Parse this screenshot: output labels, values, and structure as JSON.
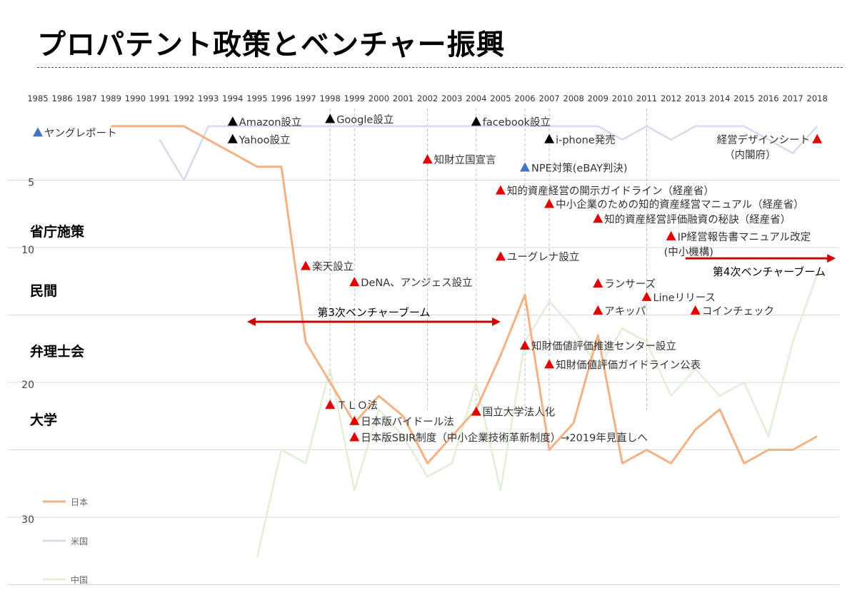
{
  "title": "プロパテント政策とベンチャー振興",
  "categories": {
    "ministry": "省庁施策",
    "private": "民間",
    "patent_attorneys": "弁理士会",
    "university": "大学"
  },
  "colors": {
    "japan": "#f4b183",
    "usa": "#d6dcec",
    "china": "#e2efd9",
    "marker_red": "#e00000",
    "marker_black": "#000000",
    "marker_blue": "#4472c4",
    "arrow": "#d00000",
    "grid": "#d9d9d9"
  },
  "chart_data": {
    "type": "line",
    "x": [
      "1985",
      "1986",
      "1987",
      "1989",
      "1990",
      "1991",
      "1992",
      "1993",
      "1994",
      "1995",
      "1996",
      "1997",
      "1998",
      "1999",
      "2000",
      "2001",
      "2002",
      "2003",
      "2004",
      "2005",
      "2006",
      "2007",
      "2008",
      "2009",
      "2010",
      "2011",
      "2012",
      "2013",
      "2014",
      "2015",
      "2016",
      "2017",
      "2018"
    ],
    "y_ticks": [
      5,
      10,
      20,
      30
    ],
    "ylim": [
      0,
      35
    ],
    "y_inverted": true,
    "grid": true,
    "legend_position": "left",
    "series": [
      {
        "name": "日本",
        "color_key": "japan",
        "values": [
          null,
          null,
          null,
          1,
          1,
          1,
          1,
          2,
          3,
          4,
          4,
          17,
          20,
          23,
          21,
          22.5,
          26,
          24,
          22,
          18,
          13.5,
          25,
          23,
          16.5,
          26,
          25,
          26,
          23.5,
          22,
          26,
          25,
          25,
          24
        ]
      },
      {
        "name": "米国",
        "color_key": "usa",
        "values": [
          null,
          null,
          null,
          null,
          null,
          2,
          5,
          1,
          1,
          1,
          1,
          1,
          1,
          1,
          1,
          1,
          1,
          1,
          1,
          1,
          1,
          1,
          1,
          1,
          2,
          1,
          2,
          1,
          1,
          1,
          2,
          3,
          1
        ]
      },
      {
        "name": "中国",
        "color_key": "china",
        "values": [
          null,
          null,
          null,
          null,
          null,
          null,
          null,
          null,
          null,
          33,
          25,
          26,
          19,
          28,
          22,
          24,
          27,
          26,
          20,
          28,
          17,
          14,
          16,
          19,
          16,
          17,
          21,
          19,
          21,
          20,
          24,
          17,
          12
        ]
      }
    ],
    "vertical_markers": [
      "1998",
      "1999",
      "2002",
      "2004",
      "2006",
      "2007",
      "2011"
    ],
    "events": [
      {
        "year": "1985",
        "y": 1.5,
        "marker": "blue",
        "text": "ヤングレポート"
      },
      {
        "year": "1994",
        "y": 0.7,
        "marker": "black",
        "text": "Amazon設立"
      },
      {
        "year": "1994",
        "y": 2,
        "marker": "black",
        "text": "Yahoo設立"
      },
      {
        "year": "1998",
        "y": 0.5,
        "marker": "black",
        "text": "Google設立"
      },
      {
        "year": "2004",
        "y": 0.7,
        "marker": "black",
        "text": "facebook設立"
      },
      {
        "year": "2007",
        "y": 2,
        "marker": "black",
        "text": "i-phone発売"
      },
      {
        "year": "2002",
        "y": 3.5,
        "marker": "red",
        "text": "知財立国宣言"
      },
      {
        "year": "2006",
        "y": 4.1,
        "marker": "blue",
        "text": "NPE対策(eBAY判決)"
      },
      {
        "year": "2018",
        "y": 2,
        "marker": "red",
        "text": "経営デザインシート",
        "text2": "（内閣府）",
        "label_side": "left"
      },
      {
        "year": "2005",
        "y": 5.8,
        "marker": "red",
        "text": "知的資産経営の開示ガイドライン（経産省）"
      },
      {
        "year": "2007",
        "y": 6.8,
        "marker": "red",
        "text": "中小企業のための知的資産経営マニュアル（経産省）"
      },
      {
        "year": "2009",
        "y": 7.9,
        "marker": "red",
        "text": "知的資産経営評価融資の秘訣（経産省）"
      },
      {
        "year": "2012",
        "y": 9.2,
        "marker": "red",
        "text": "IP経営報告書マニュアル改定",
        "text2": "(中小機構)"
      },
      {
        "year": "1997",
        "y": 11.4,
        "marker": "red",
        "text": "楽天設立"
      },
      {
        "year": "2005",
        "y": 10.7,
        "marker": "red",
        "text": "ユーグレナ設立"
      },
      {
        "year": "1999",
        "y": 12.6,
        "marker": "red",
        "text": "DeNA、アンジェス設立"
      },
      {
        "year": "2009",
        "y": 12.7,
        "marker": "red",
        "text": "ランサーズ"
      },
      {
        "year": "2011",
        "y": 13.7,
        "marker": "red",
        "text": "Lineリリース"
      },
      {
        "year": "2009",
        "y": 14.7,
        "marker": "red",
        "text": "アキッパ"
      },
      {
        "year": "2013",
        "y": 14.7,
        "marker": "red",
        "text": "コインチェック"
      },
      {
        "year": "2006",
        "y": 17.3,
        "marker": "red",
        "text": "知財価値評価推進センター設立"
      },
      {
        "year": "2007",
        "y": 18.7,
        "marker": "red",
        "text": "知財価値評価ガイドライン公表"
      },
      {
        "year": "1998",
        "y": 21.7,
        "marker": "red",
        "text": "ＴＬＯ法"
      },
      {
        "year": "2004",
        "y": 22.2,
        "marker": "red",
        "text": "国立大学法人化"
      },
      {
        "year": "1999",
        "y": 22.9,
        "marker": "red",
        "text": "日本版バイドール法"
      },
      {
        "year": "1999",
        "y": 24.1,
        "marker": "red",
        "text": "日本版SBIR制度（中小企業技術革新制度）→2019年見直しへ"
      }
    ],
    "booms": [
      {
        "label": "第3次ベンチャーブーム",
        "from": "1995",
        "to": "2005",
        "y": 15.5,
        "double": true
      },
      {
        "label": "第4次ベンチャーブーム",
        "from": "2013",
        "to": "2018",
        "y": 10.8,
        "double": false
      }
    ]
  }
}
